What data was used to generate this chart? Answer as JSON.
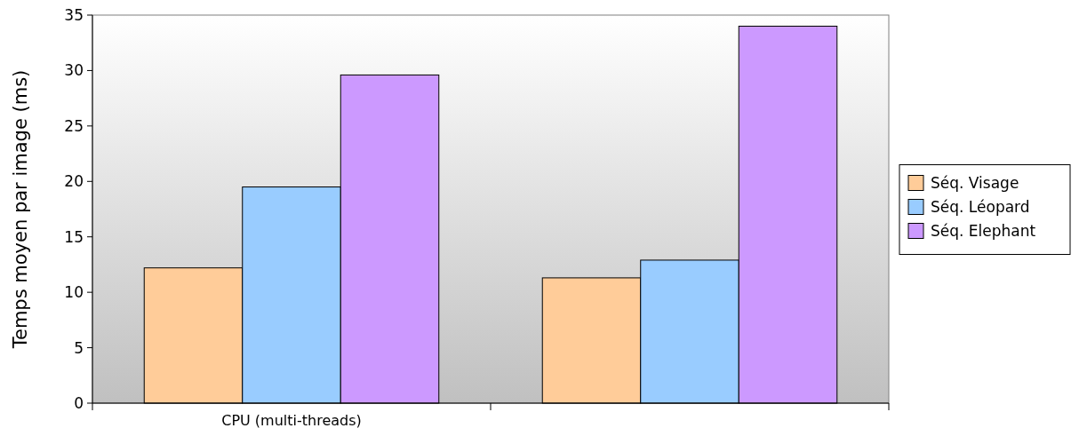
{
  "chart_data": {
    "type": "bar",
    "ylabel": "Temps moyen par image (ms)",
    "categories": [
      "CPU (multi-threads)",
      null
    ],
    "series": [
      {
        "name": "Séq. Visage",
        "color": "#ffcc99",
        "values": [
          12.2,
          11.3
        ]
      },
      {
        "name": "Séq. Léopard",
        "color": "#99ccff",
        "values": [
          19.5,
          12.9
        ]
      },
      {
        "name": "Séq. Elephant",
        "color": "#cc99ff",
        "values": [
          29.6,
          34.0
        ]
      }
    ],
    "ylim": [
      0,
      35
    ],
    "yticks": [
      0,
      5,
      10,
      15,
      20,
      25,
      30,
      35
    ],
    "legend": "right",
    "grid": false
  }
}
